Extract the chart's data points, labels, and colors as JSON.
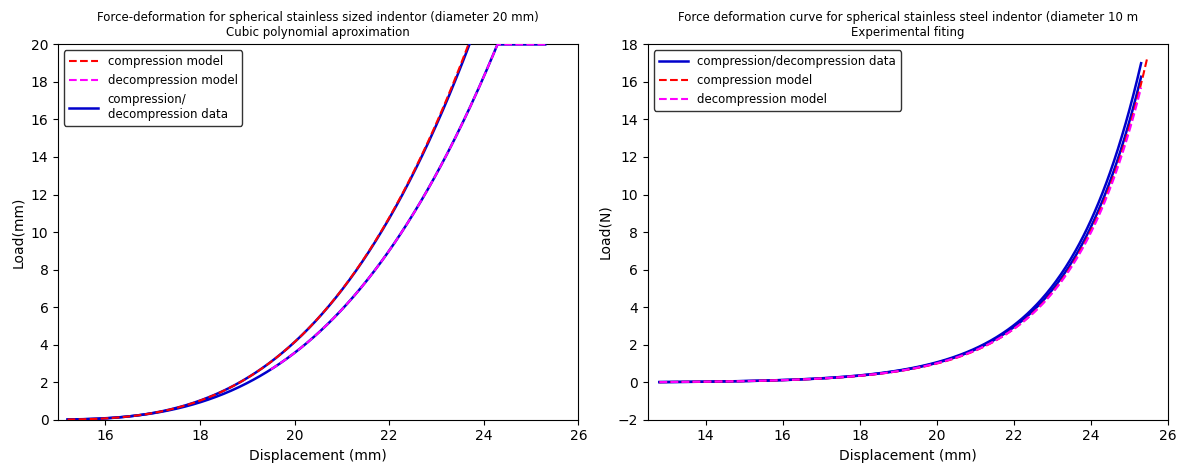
{
  "left": {
    "title_line1": "Force-deformation for spherical stainless sized indentor (diameter 20 mm)",
    "title_line2": "Cubic polynomial aproximation",
    "xlabel": "Displacement (mm)",
    "ylabel": "Load(mm)",
    "xlim": [
      15.0,
      26.0
    ],
    "ylim": [
      0,
      20
    ],
    "xticks": [
      16,
      18,
      20,
      22,
      24,
      26
    ],
    "yticks": [
      0,
      2,
      4,
      6,
      8,
      10,
      12,
      14,
      16,
      18,
      20
    ]
  },
  "right": {
    "title_line1": "Force deformation curve for spherical stainless steel indentor (diameter 10 m",
    "title_line2": "Experimental fiting",
    "xlabel": "Displacement (mm)",
    "ylabel": "Load(N)",
    "xlim": [
      12.5,
      26.0
    ],
    "ylim": [
      -2,
      18
    ],
    "xticks": [
      14,
      16,
      18,
      20,
      22,
      24,
      26
    ],
    "yticks": [
      -2,
      0,
      2,
      4,
      6,
      8,
      10,
      12,
      14,
      16,
      18
    ]
  },
  "background": "#ffffff",
  "blue": "#0000cc",
  "red": "#ff0000",
  "magenta": "#ff00ff"
}
